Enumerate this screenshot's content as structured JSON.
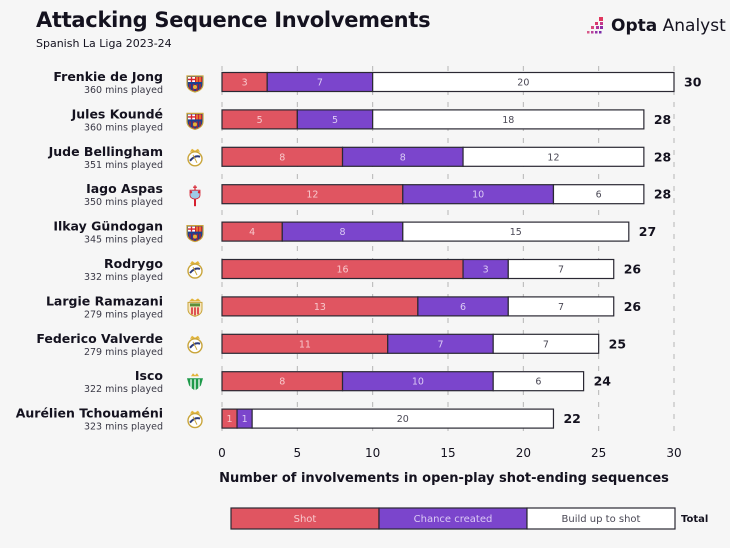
{
  "header": {
    "title": "Attacking Sequence Involvements",
    "subtitle": "Spanish La Liga 2023-24",
    "logo_bold": "Opta",
    "logo_regular": " Analyst"
  },
  "colors": {
    "shot": "#e05561",
    "chance_created": "#7b45cc",
    "build_up": "#ffffff",
    "bar_stroke": "#2a2833",
    "shot_text": "#f8c9cd",
    "chance_text": "#dccbf5",
    "build_text": "#4a4855",
    "grid": "#b5b5b5",
    "background": "#f6f6f6"
  },
  "chart_data": {
    "type": "bar",
    "orientation": "horizontal",
    "stacked": true,
    "title": "Attacking Sequence Involvements",
    "subtitle": "Spanish La Liga 2023-24",
    "xlabel": "Number of involvements in open-play shot-ending sequences",
    "ylabel": "",
    "xlim": [
      0,
      30
    ],
    "xticks": [
      0,
      5,
      10,
      15,
      20,
      25,
      30
    ],
    "grid": "vertical-dashed",
    "legend_position": "bottom",
    "legend": [
      "Shot",
      "Chance created",
      "Build up to shot",
      "Total"
    ],
    "categories": [
      "Frenkie de Jong",
      "Jules Koundé",
      "Jude Bellingham",
      "Iago Aspas",
      "Ilkay Gündogan",
      "Rodrygo",
      "Largie Ramazani",
      "Federico Valverde",
      "Isco",
      "Aurélien Tchouaméni"
    ],
    "players": [
      {
        "name": "Frenkie de Jong",
        "mins": "360 mins played",
        "club": "barcelona-crest-icon"
      },
      {
        "name": "Jules Koundé",
        "mins": "360 mins played",
        "club": "barcelona-crest-icon"
      },
      {
        "name": "Jude Bellingham",
        "mins": "351 mins played",
        "club": "real-madrid-crest-icon"
      },
      {
        "name": "Iago Aspas",
        "mins": "350 mins played",
        "club": "celta-vigo-crest-icon"
      },
      {
        "name": "Ilkay Gündogan",
        "mins": "345 mins played",
        "club": "barcelona-crest-icon"
      },
      {
        "name": "Rodrygo",
        "mins": "332 mins played",
        "club": "real-madrid-crest-icon"
      },
      {
        "name": "Largie Ramazani",
        "mins": "279 mins played",
        "club": "almeria-crest-icon"
      },
      {
        "name": "Federico Valverde",
        "mins": "279 mins played",
        "club": "real-madrid-crest-icon"
      },
      {
        "name": "Isco",
        "mins": "322 mins played",
        "club": "real-betis-crest-icon"
      },
      {
        "name": "Aurélien Tchouaméni",
        "mins": "323 mins played",
        "club": "real-madrid-crest-icon"
      }
    ],
    "series": [
      {
        "name": "Shot",
        "values": [
          3,
          5,
          8,
          12,
          4,
          16,
          13,
          11,
          8,
          1
        ]
      },
      {
        "name": "Chance created",
        "values": [
          7,
          5,
          8,
          10,
          8,
          3,
          6,
          7,
          10,
          1
        ]
      },
      {
        "name": "Build up to shot",
        "values": [
          20,
          18,
          12,
          6,
          15,
          7,
          7,
          7,
          6,
          20
        ]
      }
    ],
    "totals": [
      30,
      28,
      28,
      28,
      27,
      26,
      26,
      25,
      24,
      22
    ]
  }
}
